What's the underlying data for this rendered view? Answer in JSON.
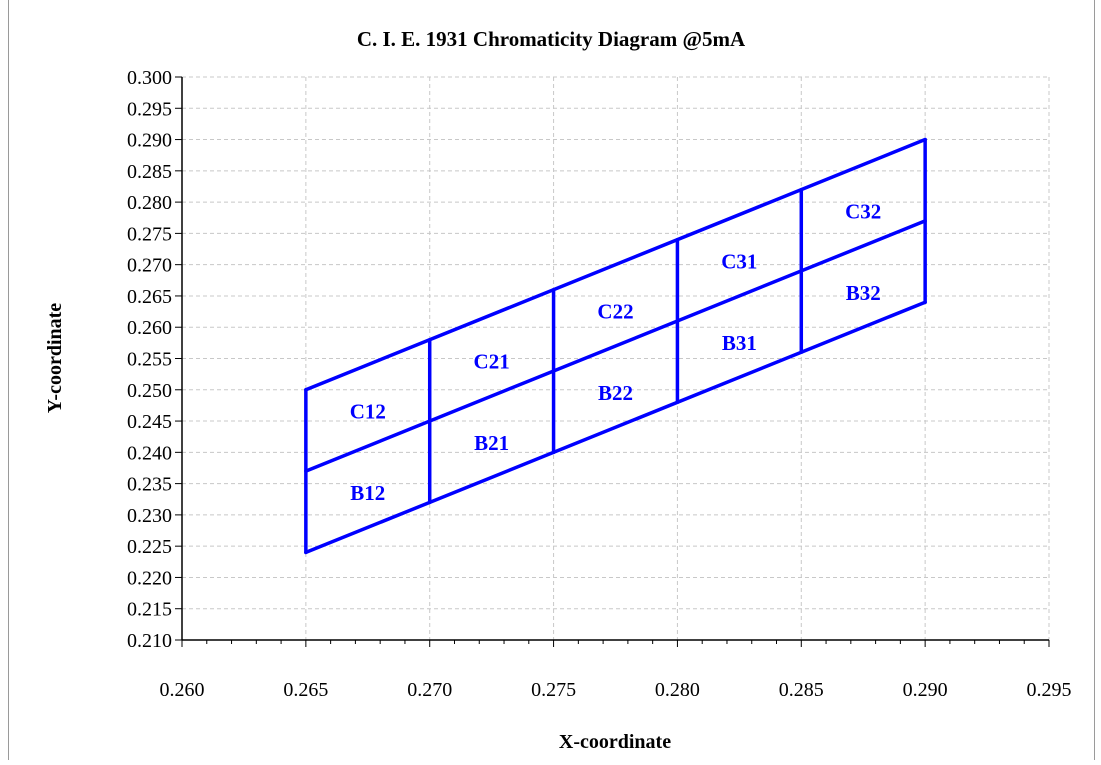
{
  "chart_data": {
    "type": "line",
    "title": "C. I. E. 1931 Chromaticity Diagram @5mA",
    "xlabel": "X-coordinate",
    "ylabel": "Y-coordinate",
    "xlim": [
      0.26,
      0.295
    ],
    "ylim": [
      0.21,
      0.3
    ],
    "x_ticks": [
      "0.260",
      "0.265",
      "0.270",
      "0.275",
      "0.280",
      "0.285",
      "0.290",
      "0.295"
    ],
    "y_ticks": [
      "0.300",
      "0.295",
      "0.290",
      "0.285",
      "0.280",
      "0.275",
      "0.270",
      "0.265",
      "0.260",
      "0.255",
      "0.250",
      "0.245",
      "0.240",
      "0.235",
      "0.230",
      "0.225",
      "0.220",
      "0.215",
      "0.210"
    ],
    "grid": true,
    "line_color": "#0000ff",
    "lines": [
      {
        "points": [
          [
            0.265,
            0.25
          ],
          [
            0.29,
            0.29
          ]
        ]
      },
      {
        "points": [
          [
            0.265,
            0.237
          ],
          [
            0.29,
            0.277
          ]
        ]
      },
      {
        "points": [
          [
            0.265,
            0.224
          ],
          [
            0.29,
            0.264
          ]
        ]
      },
      {
        "points": [
          [
            0.265,
            0.224
          ],
          [
            0.265,
            0.25
          ]
        ]
      },
      {
        "points": [
          [
            0.27,
            0.232
          ],
          [
            0.27,
            0.258
          ]
        ]
      },
      {
        "points": [
          [
            0.275,
            0.24
          ],
          [
            0.275,
            0.266
          ]
        ]
      },
      {
        "points": [
          [
            0.28,
            0.248
          ],
          [
            0.28,
            0.274
          ]
        ]
      },
      {
        "points": [
          [
            0.285,
            0.256
          ],
          [
            0.285,
            0.282
          ]
        ]
      },
      {
        "points": [
          [
            0.29,
            0.264
          ],
          [
            0.29,
            0.29
          ]
        ]
      }
    ],
    "bins": [
      {
        "label": "C12",
        "x": 0.2675,
        "y": 0.2465
      },
      {
        "label": "B12",
        "x": 0.2675,
        "y": 0.2335
      },
      {
        "label": "C21",
        "x": 0.2725,
        "y": 0.2545
      },
      {
        "label": "B21",
        "x": 0.2725,
        "y": 0.2415
      },
      {
        "label": "C22",
        "x": 0.2775,
        "y": 0.2625
      },
      {
        "label": "B22",
        "x": 0.2775,
        "y": 0.2495
      },
      {
        "label": "C31",
        "x": 0.2825,
        "y": 0.2705
      },
      {
        "label": "B31",
        "x": 0.2825,
        "y": 0.2575
      },
      {
        "label": "C32",
        "x": 0.2875,
        "y": 0.2785
      },
      {
        "label": "B32",
        "x": 0.2875,
        "y": 0.2655
      }
    ]
  }
}
